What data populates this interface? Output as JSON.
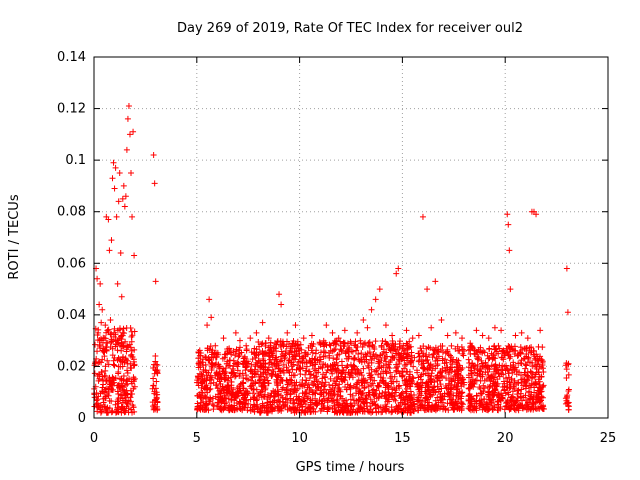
{
  "chart_data": {
    "type": "scatter",
    "title": "Day 269 of 2019, Rate Of TEC Index for receiver oul2",
    "xlabel": "GPS time / hours",
    "ylabel": "ROTI / TECUs",
    "xlim": [
      0,
      25
    ],
    "ylim": [
      0,
      0.14
    ],
    "xticks": [
      0,
      5,
      10,
      15,
      20,
      25
    ],
    "xtick_labels": [
      "0",
      "5",
      "10",
      "15",
      "20",
      "25"
    ],
    "yticks": [
      0,
      0.02,
      0.04,
      0.06,
      0.08,
      0.1,
      0.12,
      0.14
    ],
    "ytick_labels": [
      "0",
      "0.02",
      "0.04",
      "0.06",
      "0.08",
      "0.1",
      "0.12",
      "0.14"
    ],
    "grid": true,
    "marker": "plus",
    "marker_color": "#ff0000",
    "series": [
      {
        "x": [
          0.1,
          0.15,
          0.2,
          0.25,
          0.3,
          0.35,
          0.4,
          0.5,
          0.55,
          0.6,
          0.7,
          0.75,
          0.8,
          0.85,
          0.9,
          0.95,
          1.0,
          1.05,
          1.1,
          1.15,
          1.2,
          1.25,
          1.3,
          1.35,
          1.4,
          1.45,
          1.5,
          1.55,
          1.6,
          1.65,
          1.7,
          1.75,
          1.8,
          1.85,
          1.9,
          1.95,
          2.9,
          2.95,
          3.0,
          5.5,
          5.6,
          5.7,
          5.9,
          6.3,
          6.6,
          6.9,
          7.1,
          7.4,
          7.6,
          7.9,
          8.2,
          8.5,
          8.8,
          9.0,
          9.1,
          9.4,
          9.8,
          10.2,
          10.6,
          11.0,
          11.3,
          11.6,
          11.9,
          12.2,
          12.5,
          12.8,
          13.1,
          13.3,
          13.5,
          13.7,
          13.9,
          14.2,
          14.5,
          14.7,
          14.8,
          15.2,
          15.5,
          15.8,
          16.0,
          16.2,
          16.4,
          16.6,
          16.9,
          17.2,
          17.6,
          17.9,
          18.3,
          18.6,
          18.9,
          19.2,
          19.5,
          19.8,
          20.1,
          20.15,
          20.2,
          20.25,
          20.5,
          20.8,
          21.1,
          21.3,
          21.4,
          21.5,
          21.7,
          23.0,
          23.05
        ],
        "y": [
          0.058,
          0.054,
          0.033,
          0.044,
          0.052,
          0.037,
          0.042,
          0.031,
          0.036,
          0.078,
          0.077,
          0.065,
          0.038,
          0.069,
          0.093,
          0.099,
          0.089,
          0.097,
          0.078,
          0.052,
          0.084,
          0.095,
          0.064,
          0.047,
          0.085,
          0.09,
          0.082,
          0.086,
          0.104,
          0.116,
          0.121,
          0.11,
          0.095,
          0.078,
          0.111,
          0.063,
          0.102,
          0.091,
          0.053,
          0.036,
          0.046,
          0.039,
          0.028,
          0.031,
          0.026,
          0.033,
          0.03,
          0.028,
          0.031,
          0.033,
          0.037,
          0.031,
          0.029,
          0.048,
          0.044,
          0.033,
          0.036,
          0.031,
          0.032,
          0.029,
          0.036,
          0.033,
          0.031,
          0.034,
          0.029,
          0.033,
          0.038,
          0.035,
          0.042,
          0.046,
          0.05,
          0.036,
          0.032,
          0.056,
          0.058,
          0.034,
          0.031,
          0.032,
          0.078,
          0.05,
          0.035,
          0.053,
          0.038,
          0.032,
          0.033,
          0.031,
          0.029,
          0.034,
          0.032,
          0.031,
          0.035,
          0.034,
          0.079,
          0.075,
          0.065,
          0.05,
          0.032,
          0.033,
          0.031,
          0.08,
          0.08,
          0.079,
          0.034,
          0.058,
          0.041
        ]
      }
    ],
    "dense_bands": [
      {
        "x_start": 0.0,
        "x_end": 2.0,
        "y_low": 0.002,
        "y_high": 0.035
      },
      {
        "x_start": 2.85,
        "x_end": 3.1,
        "y_low": 0.003,
        "y_high": 0.025
      },
      {
        "x_start": 5.0,
        "x_end": 7.5,
        "y_low": 0.003,
        "y_high": 0.028
      },
      {
        "x_start": 7.6,
        "x_end": 15.6,
        "y_low": 0.002,
        "y_high": 0.03
      },
      {
        "x_start": 15.7,
        "x_end": 18.0,
        "y_low": 0.003,
        "y_high": 0.028
      },
      {
        "x_start": 18.2,
        "x_end": 21.9,
        "y_low": 0.003,
        "y_high": 0.028
      },
      {
        "x_start": 22.95,
        "x_end": 23.1,
        "y_low": 0.003,
        "y_high": 0.022
      }
    ]
  }
}
